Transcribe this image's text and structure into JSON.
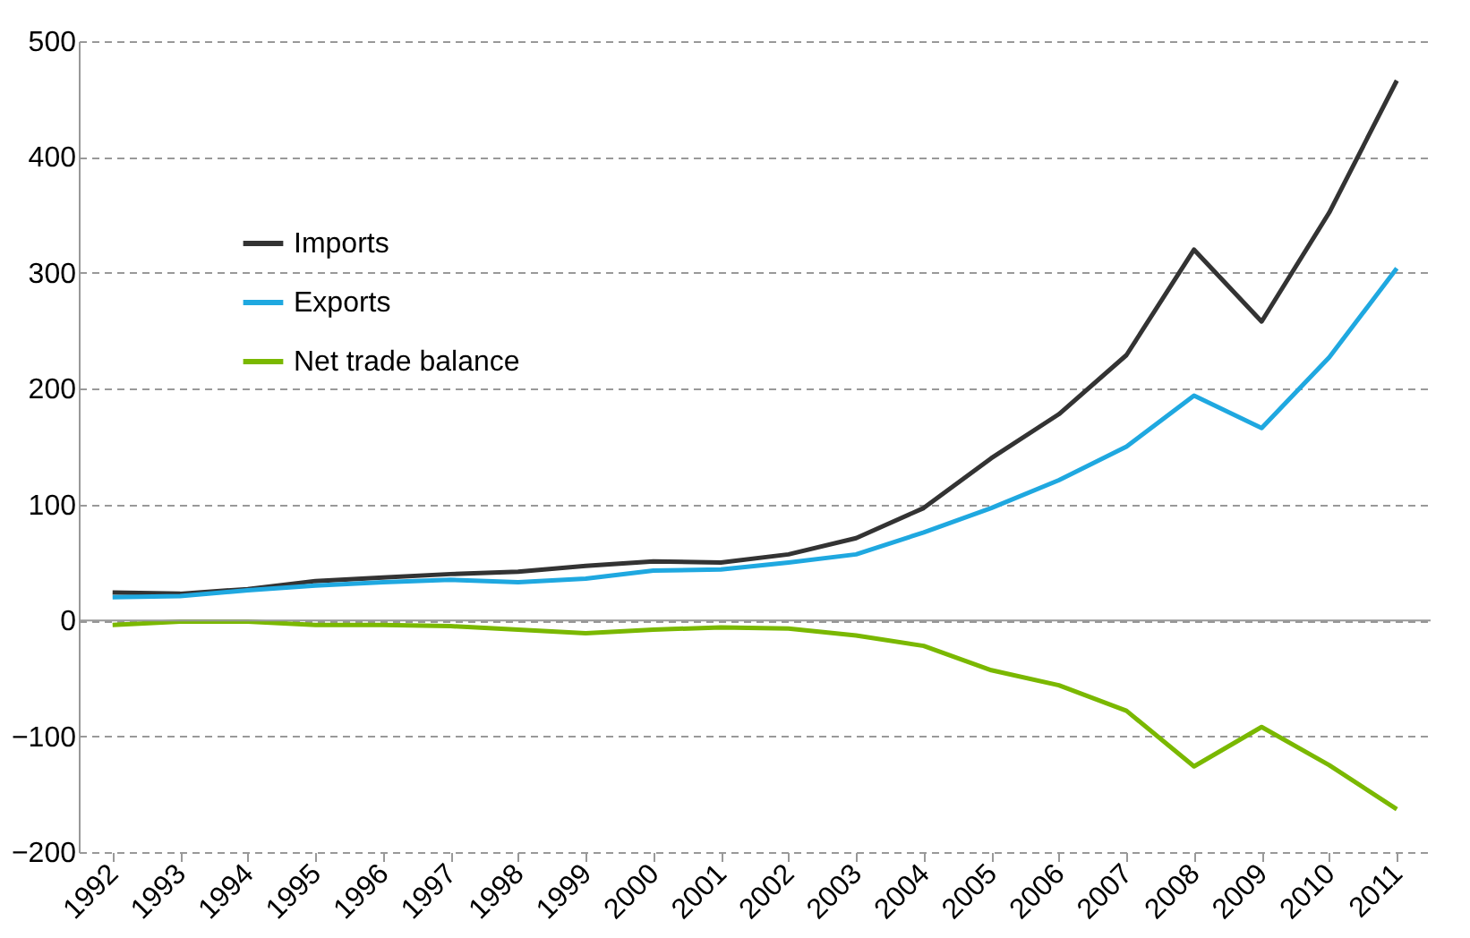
{
  "chart_data": {
    "type": "line",
    "categories": [
      "1992",
      "1993",
      "1994",
      "1995",
      "1996",
      "1997",
      "1998",
      "1999",
      "2000",
      "2001",
      "2002",
      "2003",
      "2004",
      "2005",
      "2006",
      "2007",
      "2008",
      "2009",
      "2010",
      "2011"
    ],
    "series": [
      {
        "name": "Imports",
        "color": "#333333",
        "values": [
          24,
          23,
          27,
          34,
          37,
          40,
          42,
          47,
          51,
          50,
          57,
          71,
          97,
          140,
          178,
          229,
          320,
          258,
          352,
          466
        ]
      },
      {
        "name": "Exports",
        "color": "#1fa8e0",
        "values": [
          20,
          21,
          26,
          30,
          33,
          35,
          33,
          36,
          43,
          44,
          50,
          57,
          76,
          97,
          121,
          150,
          194,
          166,
          227,
          304
        ]
      },
      {
        "name": "Net trade balance",
        "color": "#7ab800",
        "values": [
          -4,
          -1,
          -1,
          -4,
          -4,
          -5,
          -8,
          -11,
          -8,
          -6,
          -7,
          -13,
          -22,
          -43,
          -56,
          -78,
          -126,
          -92,
          -125,
          -163
        ]
      }
    ],
    "ylim": [
      -200,
      500
    ],
    "yticks": [
      -200,
      -100,
      0,
      100,
      200,
      300,
      400,
      500
    ],
    "grid": "y",
    "legend": "top left",
    "line_style": "solid",
    "marker": "none"
  }
}
